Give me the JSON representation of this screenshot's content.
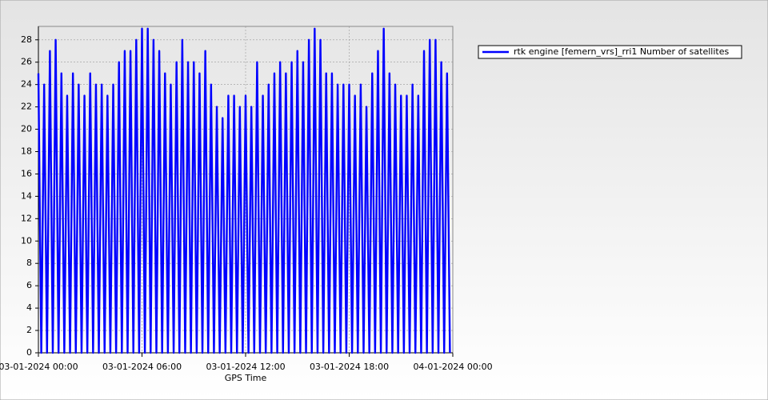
{
  "chart_data": {
    "type": "line",
    "x_label": "GPS Time",
    "x": [
      "03-01-2024 00:00",
      "03-01-2024 00:10",
      "03-01-2024 00:20",
      "03-01-2024 00:30",
      "03-01-2024 00:40",
      "03-01-2024 00:50",
      "03-01-2024 01:00",
      "03-01-2024 01:10",
      "03-01-2024 01:20",
      "03-01-2024 01:30",
      "03-01-2024 01:40",
      "03-01-2024 01:50",
      "03-01-2024 02:00",
      "03-01-2024 02:10",
      "03-01-2024 02:20",
      "03-01-2024 02:30",
      "03-01-2024 02:40",
      "03-01-2024 02:50",
      "03-01-2024 03:00",
      "03-01-2024 03:10",
      "03-01-2024 03:20",
      "03-01-2024 03:30",
      "03-01-2024 03:40",
      "03-01-2024 03:50",
      "03-01-2024 04:00",
      "03-01-2024 04:10",
      "03-01-2024 04:20",
      "03-01-2024 04:30",
      "03-01-2024 04:40",
      "03-01-2024 04:50",
      "03-01-2024 05:00",
      "03-01-2024 05:10",
      "03-01-2024 05:20",
      "03-01-2024 05:30",
      "03-01-2024 05:40",
      "03-01-2024 05:50",
      "03-01-2024 06:00",
      "03-01-2024 06:10",
      "03-01-2024 06:20",
      "03-01-2024 06:30",
      "03-01-2024 06:40",
      "03-01-2024 06:50",
      "03-01-2024 07:00",
      "03-01-2024 07:10",
      "03-01-2024 07:20",
      "03-01-2024 07:30",
      "03-01-2024 07:40",
      "03-01-2024 07:50",
      "03-01-2024 08:00",
      "03-01-2024 08:10",
      "03-01-2024 08:20",
      "03-01-2024 08:30",
      "03-01-2024 08:40",
      "03-01-2024 08:50",
      "03-01-2024 09:00",
      "03-01-2024 09:10",
      "03-01-2024 09:20",
      "03-01-2024 09:30",
      "03-01-2024 09:40",
      "03-01-2024 09:50",
      "03-01-2024 10:00",
      "03-01-2024 10:10",
      "03-01-2024 10:20",
      "03-01-2024 10:30",
      "03-01-2024 10:40",
      "03-01-2024 10:50",
      "03-01-2024 11:00",
      "03-01-2024 11:10",
      "03-01-2024 11:20",
      "03-01-2024 11:30",
      "03-01-2024 11:40",
      "03-01-2024 11:50",
      "03-01-2024 12:00",
      "03-01-2024 12:10",
      "03-01-2024 12:20",
      "03-01-2024 12:30",
      "03-01-2024 12:40",
      "03-01-2024 12:50",
      "03-01-2024 13:00",
      "03-01-2024 13:10",
      "03-01-2024 13:20",
      "03-01-2024 13:30",
      "03-01-2024 13:40",
      "03-01-2024 13:50",
      "03-01-2024 14:00",
      "03-01-2024 14:10",
      "03-01-2024 14:20",
      "03-01-2024 14:30",
      "03-01-2024 14:40",
      "03-01-2024 14:50",
      "03-01-2024 15:00",
      "03-01-2024 15:10",
      "03-01-2024 15:20",
      "03-01-2024 15:30",
      "03-01-2024 15:40",
      "03-01-2024 15:50",
      "03-01-2024 16:00",
      "03-01-2024 16:10",
      "03-01-2024 16:20",
      "03-01-2024 16:30",
      "03-01-2024 16:40",
      "03-01-2024 16:50",
      "03-01-2024 17:00",
      "03-01-2024 17:10",
      "03-01-2024 17:20",
      "03-01-2024 17:30",
      "03-01-2024 17:40",
      "03-01-2024 17:50",
      "03-01-2024 18:00",
      "03-01-2024 18:10",
      "03-01-2024 18:20",
      "03-01-2024 18:30",
      "03-01-2024 18:40",
      "03-01-2024 18:50",
      "03-01-2024 19:00",
      "03-01-2024 19:10",
      "03-01-2024 19:20",
      "03-01-2024 19:30",
      "03-01-2024 19:40",
      "03-01-2024 19:50",
      "03-01-2024 20:00",
      "03-01-2024 20:10",
      "03-01-2024 20:20",
      "03-01-2024 20:30",
      "03-01-2024 20:40",
      "03-01-2024 20:50",
      "03-01-2024 21:00",
      "03-01-2024 21:10",
      "03-01-2024 21:20",
      "03-01-2024 21:30",
      "03-01-2024 21:40",
      "03-01-2024 21:50",
      "03-01-2024 22:00",
      "03-01-2024 22:10",
      "03-01-2024 22:20",
      "03-01-2024 22:30",
      "03-01-2024 22:40",
      "03-01-2024 22:50",
      "03-01-2024 23:00",
      "03-01-2024 23:10",
      "03-01-2024 23:20",
      "03-01-2024 23:30",
      "03-01-2024 23:40",
      "03-01-2024 23:50"
    ],
    "series": [
      {
        "name": "rtk engine [femern_vrs]_rri1 Number of satellites",
        "color": "#0000ff",
        "values": [
          25,
          0,
          24,
          0,
          27,
          0,
          28,
          0,
          25,
          0,
          23,
          0,
          25,
          0,
          24,
          0,
          23,
          0,
          25,
          0,
          24,
          0,
          24,
          0,
          23,
          0,
          24,
          0,
          26,
          0,
          27,
          0,
          27,
          0,
          28,
          0,
          29,
          0,
          29,
          0,
          28,
          0,
          27,
          0,
          25,
          0,
          24,
          0,
          26,
          0,
          28,
          0,
          26,
          0,
          26,
          0,
          25,
          0,
          27,
          0,
          24,
          0,
          22,
          0,
          21,
          0,
          23,
          0,
          23,
          0,
          22,
          0,
          23,
          0,
          22,
          0,
          26,
          0,
          23,
          0,
          24,
          0,
          25,
          0,
          26,
          0,
          25,
          0,
          26,
          0,
          27,
          0,
          26,
          0,
          28,
          0,
          29,
          0,
          28,
          0,
          25,
          0,
          25,
          0,
          24,
          0,
          24,
          0,
          24,
          0,
          23,
          0,
          24,
          0,
          22,
          0,
          25,
          0,
          27,
          0,
          29,
          0,
          25,
          0,
          24,
          0,
          23,
          0,
          23,
          0,
          24,
          0,
          23,
          0,
          27,
          0,
          28,
          0,
          28,
          0,
          26,
          0,
          25,
          0
        ]
      }
    ],
    "xlim": [
      "03-01-2024 00:00",
      "04-01-2024 00:00"
    ],
    "xticks": [
      "03-01-2024 00:00",
      "03-01-2024 06:00",
      "03-01-2024 12:00",
      "03-01-2024 18:00",
      "04-01-2024 00:00"
    ],
    "ylim": [
      0,
      29.2
    ],
    "yticks": [
      0,
      2,
      4,
      6,
      8,
      10,
      12,
      14,
      16,
      18,
      20,
      22,
      24,
      26,
      28
    ],
    "grid": true,
    "legend": "upper right"
  }
}
